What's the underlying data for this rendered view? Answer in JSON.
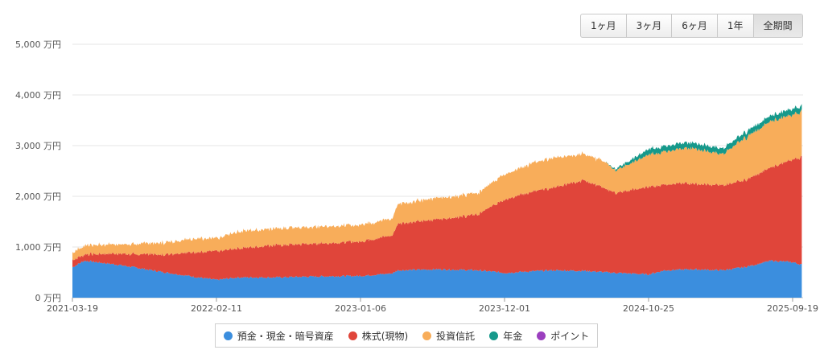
{
  "range_buttons": [
    {
      "label": "1ヶ月",
      "active": false
    },
    {
      "label": "3ヶ月",
      "active": false
    },
    {
      "label": "6ヶ月",
      "active": false
    },
    {
      "label": "1年",
      "active": false
    },
    {
      "label": "全期間",
      "active": true
    }
  ],
  "chart_data": {
    "type": "area",
    "stacked": true,
    "title": "",
    "xlabel": "",
    "ylabel": "",
    "ylim": [
      0,
      5000
    ],
    "y_unit": "万円",
    "y_ticks": [
      "0 万円",
      "1,000 万円",
      "2,000 万円",
      "3,000 万円",
      "4,000 万円",
      "5,000 万円"
    ],
    "y_tick_values": [
      0,
      1000,
      2000,
      3000,
      4000,
      5000
    ],
    "x_ticks": [
      "2021-03-19",
      "2022-02-11",
      "2023-01-06",
      "2023-12-01",
      "2024-10-25",
      "2025-09-19"
    ],
    "x": [
      "2021-03-19",
      "2021-04-15",
      "2021-07-01",
      "2021-10-01",
      "2022-01-01",
      "2022-02-11",
      "2022-04-01",
      "2022-07-01",
      "2022-10-01",
      "2023-01-06",
      "2023-03-20",
      "2023-04-01",
      "2023-07-01",
      "2023-10-01",
      "2023-12-01",
      "2024-02-01",
      "2024-03-15",
      "2024-06-01",
      "2024-07-20",
      "2024-08-10",
      "2024-10-25",
      "2024-12-01",
      "2025-02-01",
      "2025-04-10",
      "2025-06-01",
      "2025-08-01",
      "2025-09-19",
      "2025-10-10"
    ],
    "series": [
      {
        "name": "預金・現金・暗号資産",
        "color": "#3b8ede",
        "values": [
          600,
          730,
          650,
          520,
          400,
          350,
          400,
          400,
          420,
          430,
          480,
          540,
          560,
          540,
          490,
          520,
          540,
          530,
          500,
          490,
          460,
          540,
          560,
          540,
          600,
          730,
          700,
          650
        ]
      },
      {
        "name": "株式(現物)",
        "color": "#e0453a",
        "values": [
          150,
          120,
          220,
          330,
          500,
          560,
          580,
          640,
          650,
          680,
          750,
          920,
          990,
          1100,
          1450,
          1570,
          1620,
          1790,
          1640,
          1580,
          1720,
          1700,
          1700,
          1670,
          1720,
          1840,
          2030,
          2120
        ]
      },
      {
        "name": "投資信託",
        "color": "#f8ad5a",
        "values": [
          140,
          180,
          180,
          230,
          270,
          250,
          330,
          330,
          330,
          330,
          330,
          390,
          420,
          420,
          500,
          560,
          590,
          520,
          520,
          440,
          640,
          650,
          700,
          610,
          820,
          920,
          880,
          900
        ]
      },
      {
        "name": "年金",
        "color": "#16998b",
        "values": [
          0,
          0,
          0,
          0,
          0,
          0,
          0,
          0,
          0,
          0,
          0,
          0,
          0,
          0,
          0,
          0,
          0,
          0,
          0,
          30,
          110,
          110,
          110,
          110,
          110,
          110,
          120,
          110
        ]
      },
      {
        "name": "ポイント",
        "color": "#9b3fbf",
        "values": [
          0,
          0,
          0,
          0,
          0,
          0,
          0,
          0,
          0,
          0,
          0,
          0,
          0,
          0,
          0,
          0,
          0,
          0,
          0,
          0,
          0,
          0,
          0,
          0,
          0,
          0,
          0,
          0
        ]
      }
    ],
    "grid": true,
    "legend_position": "bottom"
  }
}
